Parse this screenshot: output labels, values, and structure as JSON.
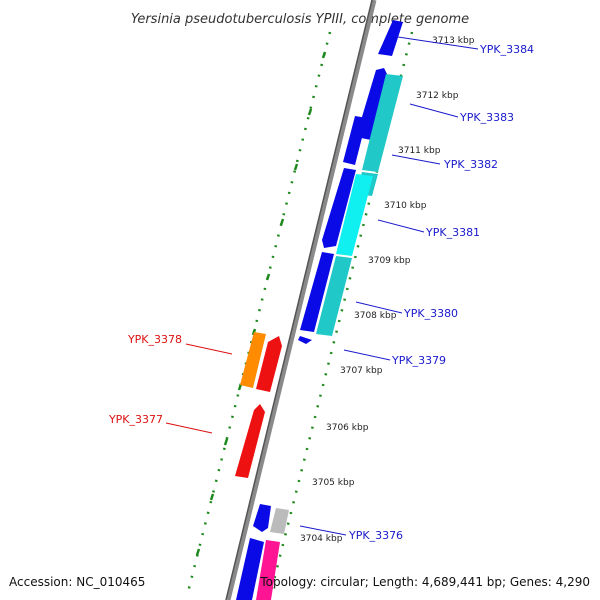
{
  "title": "Yersinia pseudotuberculosis YPIII, complete genome",
  "footer": {
    "accession": "Accession: NC_010465",
    "topology": "Topology: circular; Length: 4,689,441 bp; Genes: 4,290"
  },
  "colors": {
    "backbone": "#8a8a8a",
    "ticks": "#1e8a1e",
    "forward_label": "#1a1acc",
    "reverse_label": "#dd1111"
  },
  "ticks": [
    "3713 kbp",
    "3712 kbp",
    "3711 kbp",
    "3710 kbp",
    "3709 kbp",
    "3708 kbp",
    "3707 kbp",
    "3706 kbp",
    "3705 kbp",
    "3704 kbp"
  ],
  "gene_labels": [
    {
      "name": "YPK_3384",
      "color": "#1a1acc"
    },
    {
      "name": "YPK_3383",
      "color": "#1a1acc"
    },
    {
      "name": "YPK_3382",
      "color": "#1a1acc"
    },
    {
      "name": "YPK_3381",
      "color": "#1a1acc"
    },
    {
      "name": "YPK_3380",
      "color": "#1a1acc"
    },
    {
      "name": "YPK_3379",
      "color": "#1a1acc"
    },
    {
      "name": "YPK_3378",
      "color": "#dd1111"
    },
    {
      "name": "YPK_3377",
      "color": "#dd1111"
    },
    {
      "name": "YPK_3376",
      "color": "#1a1acc"
    }
  ],
  "features": [
    {
      "color": "#0a0ae6"
    },
    {
      "color": "#0a0ae6"
    },
    {
      "color": "#0a0ae6"
    },
    {
      "color": "#0a0ae6"
    },
    {
      "color": "#0a0ae6"
    },
    {
      "color": "#0a0ae6"
    },
    {
      "color": "#0a0ae6"
    },
    {
      "color": "#0a0ae6"
    },
    {
      "color": "#20c8c8"
    },
    {
      "color": "#20c8c8"
    },
    {
      "color": "#10f0f0"
    },
    {
      "color": "#20c8c8"
    },
    {
      "color": "#ff8c00"
    },
    {
      "color": "#ee1111"
    },
    {
      "color": "#ee1111"
    },
    {
      "color": "#bbbbbb"
    },
    {
      "color": "#ff1493"
    }
  ]
}
